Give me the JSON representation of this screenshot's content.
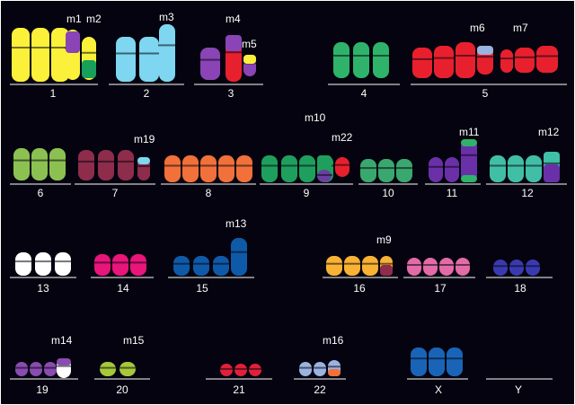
{
  "image": {
    "description_colors": {
      "background": "#04030f",
      "baseline": "#ffffff",
      "label": "#ffffff"
    }
  },
  "groups": [
    {
      "label": "1",
      "colors": [
        "#fbf03a",
        "#fbf03a",
        "#fbf03a",
        "#fbf03a"
      ],
      "markers": [
        "m1",
        "m2"
      ]
    },
    {
      "label": "2",
      "colors": [
        "#7ed6f0",
        "#7ed6f0",
        "#7ed6f0"
      ],
      "markers": [
        "m3"
      ]
    },
    {
      "label": "3",
      "colors": [
        "#8a44b6",
        "#e8202e",
        "#8a44b6"
      ],
      "markers": [
        "m4",
        "m5"
      ]
    },
    {
      "label": "4",
      "colors": [
        "#2fb36b",
        "#2fb36b",
        "#2fb36b"
      ],
      "markers": []
    },
    {
      "label": "5",
      "colors": [
        "#e8202e",
        "#e8202e",
        "#e8202e",
        "#e8202e",
        "#e8202e",
        "#e8202e",
        "#e8202e"
      ],
      "markers": [
        "m6",
        "m7"
      ]
    },
    {
      "label": "6",
      "colors": [
        "#8cc152",
        "#8cc152",
        "#8cc152"
      ],
      "markers": []
    },
    {
      "label": "7",
      "colors": [
        "#8e2c4c",
        "#8e2c4c",
        "#8e2c4c",
        "#8e2c4c"
      ],
      "markers": [
        "m19"
      ]
    },
    {
      "label": "8",
      "colors": [
        "#f2703a",
        "#f2703a",
        "#f2703a",
        "#f2703a",
        "#f2703a"
      ],
      "markers": []
    },
    {
      "label": "9",
      "colors": [
        "#1f9f5e",
        "#1f9f5e",
        "#1f9f5e",
        "#1f9f5e",
        "#6b3fa0",
        "#e8202e"
      ],
      "markers": [
        "m10",
        "m22"
      ]
    },
    {
      "label": "10",
      "colors": [
        "#3aa86e",
        "#3aa86e",
        "#3aa86e"
      ],
      "markers": []
    },
    {
      "label": "11",
      "colors": [
        "#6a30a8",
        "#6a30a8",
        "#6a30a8"
      ],
      "markers": [
        "m11"
      ]
    },
    {
      "label": "12",
      "colors": [
        "#41bfa6",
        "#41bfa6",
        "#41bfa6",
        "#41bfa6"
      ],
      "markers": [
        "m12"
      ]
    },
    {
      "label": "13",
      "colors": [
        "#ffffff",
        "#ffffff",
        "#ffffff"
      ],
      "markers": []
    },
    {
      "label": "14",
      "colors": [
        "#e8157a",
        "#e8157a",
        "#e8157a"
      ],
      "markers": []
    },
    {
      "label": "15",
      "colors": [
        "#0f5aa8",
        "#0f5aa8",
        "#0f5aa8",
        "#0f5aa8"
      ],
      "markers": [
        "m13"
      ]
    },
    {
      "label": "16",
      "colors": [
        "#f9b233",
        "#f9b233",
        "#f9b233",
        "#f9b233"
      ],
      "markers": [
        "m9"
      ]
    },
    {
      "label": "17",
      "colors": [
        "#e26ba8",
        "#e26ba8",
        "#e26ba8",
        "#e26ba8"
      ],
      "markers": []
    },
    {
      "label": "18",
      "colors": [
        "#3a3ab0",
        "#3a3ab0",
        "#3a3ab0"
      ],
      "markers": []
    },
    {
      "label": "19",
      "colors": [
        "#8a4cb0",
        "#8a4cb0",
        "#8a4cb0",
        "#ffffff"
      ],
      "markers": [
        "m14"
      ]
    },
    {
      "label": "20",
      "colors": [
        "#a6c83a",
        "#a6c83a"
      ],
      "markers": [
        "m15"
      ]
    },
    {
      "label": "21",
      "colors": [
        "#e2203a",
        "#e2203a",
        "#e2203a"
      ],
      "markers": []
    },
    {
      "label": "22",
      "colors": [
        "#9bb3e0",
        "#9bb3e0",
        "#9bb3e0"
      ],
      "markers": [
        "m16"
      ]
    },
    {
      "label": "X",
      "colors": [
        "#1a64b8",
        "#1a64b8",
        "#1a64b8"
      ],
      "markers": []
    },
    {
      "label": "Y",
      "colors": [],
      "markers": []
    }
  ]
}
